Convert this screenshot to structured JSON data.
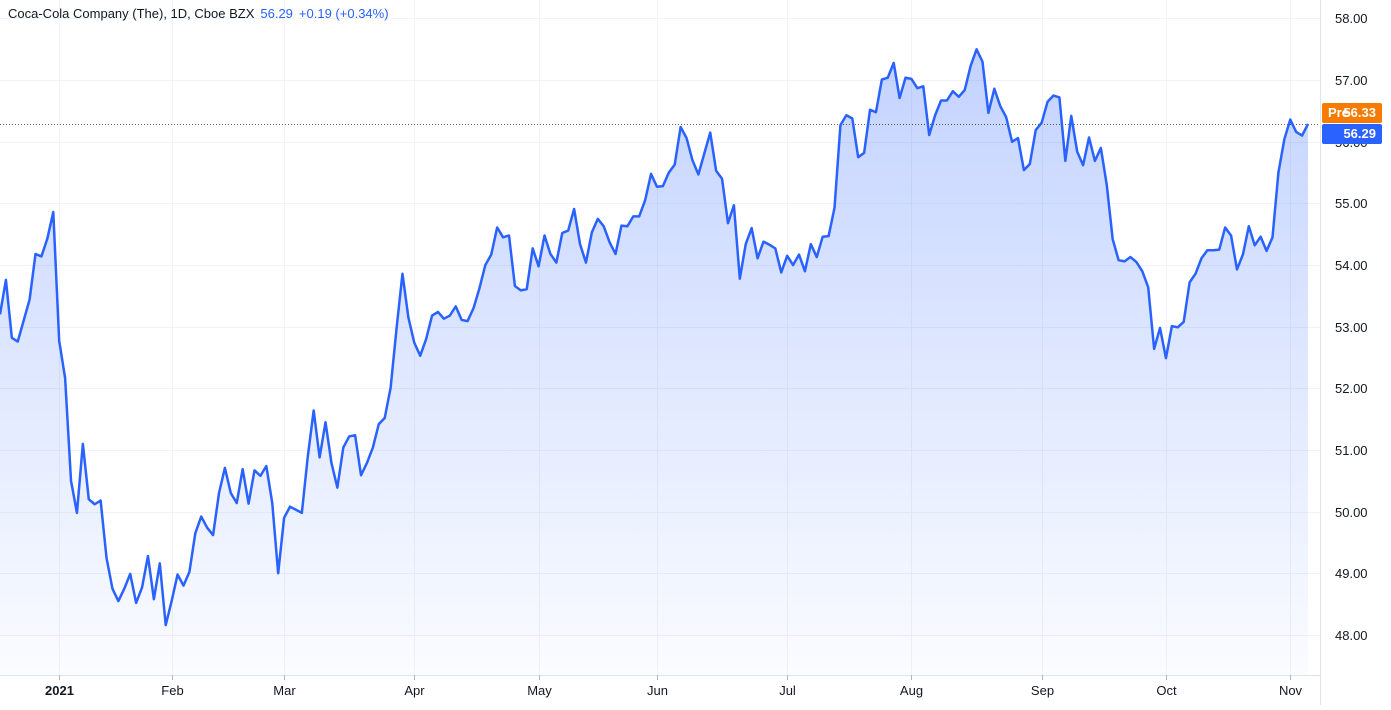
{
  "legend": {
    "title": "Coca-Cola Company (The), 1D, Cboe BZX",
    "last": "56.29",
    "change": "+0.19 (+0.34%)"
  },
  "tags": {
    "pre_label": "Pre",
    "pre_value": "56.33",
    "last_value": "56.29"
  },
  "colors": {
    "line": "#2962ff",
    "pre": "#f57c00",
    "grid": "#f0f3fa"
  },
  "chart_data": {
    "type": "area",
    "ylim": [
      47.35,
      58.3
    ],
    "y_ticks": [
      "48.00",
      "49.00",
      "50.00",
      "51.00",
      "52.00",
      "53.00",
      "54.00",
      "55.00",
      "56.00",
      "57.00",
      "58.00"
    ],
    "x_tick_labels": [
      {
        "label": "2021",
        "bold": true
      },
      {
        "label": "Feb",
        "bold": false
      },
      {
        "label": "Mar",
        "bold": false
      },
      {
        "label": "Apr",
        "bold": false
      },
      {
        "label": "May",
        "bold": false
      },
      {
        "label": "Jun",
        "bold": false
      },
      {
        "label": "Jul",
        "bold": false
      },
      {
        "label": "Aug",
        "bold": false
      },
      {
        "label": "Sep",
        "bold": false
      },
      {
        "label": "Oct",
        "bold": false
      },
      {
        "label": "Nov",
        "bold": false
      }
    ],
    "x_tick_index": [
      10,
      29,
      48,
      70,
      91,
      111,
      133,
      154,
      176,
      197,
      218
    ],
    "n_points": 222,
    "values": [
      53.2,
      53.76,
      52.82,
      52.76,
      53.1,
      53.44,
      54.18,
      54.14,
      54.43,
      54.86,
      52.77,
      52.17,
      50.5,
      49.98,
      51.1,
      50.2,
      50.12,
      50.18,
      49.25,
      48.75,
      48.55,
      48.75,
      48.99,
      48.52,
      48.77,
      49.28,
      48.58,
      49.16,
      48.16,
      48.55,
      48.98,
      48.8,
      49.02,
      49.65,
      49.92,
      49.74,
      49.62,
      50.3,
      50.71,
      50.3,
      50.14,
      50.69,
      50.13,
      50.67,
      50.58,
      50.74,
      50.14,
      49.0,
      49.9,
      50.08,
      50.03,
      49.98,
      50.89,
      51.64,
      50.88,
      51.45,
      50.79,
      50.39,
      51.04,
      51.22,
      51.24,
      50.59,
      50.79,
      51.04,
      51.42,
      51.52,
      52.01,
      52.97,
      53.86,
      53.15,
      52.74,
      52.53,
      52.8,
      53.18,
      53.24,
      53.13,
      53.18,
      53.33,
      53.11,
      53.09,
      53.3,
      53.62,
      54.0,
      54.17,
      54.61,
      54.45,
      54.48,
      53.66,
      53.59,
      53.61,
      54.27,
      53.98,
      54.48,
      54.18,
      54.04,
      54.52,
      54.56,
      54.91,
      54.34,
      54.04,
      54.53,
      54.75,
      54.63,
      54.37,
      54.18,
      54.64,
      54.63,
      54.79,
      54.79,
      55.05,
      55.48,
      55.27,
      55.28,
      55.5,
      55.63,
      56.24,
      56.06,
      55.7,
      55.47,
      55.81,
      56.15,
      55.53,
      55.4,
      54.68,
      54.97,
      53.78,
      54.34,
      54.6,
      54.11,
      54.38,
      54.33,
      54.27,
      53.88,
      54.15,
      54.0,
      54.17,
      53.9,
      54.34,
      54.13,
      54.46,
      54.47,
      54.93,
      56.27,
      56.43,
      56.38,
      55.75,
      55.82,
      56.52,
      56.48,
      57.01,
      57.04,
      57.28,
      56.71,
      57.04,
      57.02,
      56.87,
      56.9,
      56.11,
      56.43,
      56.67,
      56.67,
      56.82,
      56.73,
      56.84,
      57.23,
      57.5,
      57.3,
      56.47,
      56.86,
      56.58,
      56.4,
      56.0,
      56.06,
      55.54,
      55.64,
      56.19,
      56.31,
      56.65,
      56.75,
      56.72,
      55.69,
      56.42,
      55.84,
      55.62,
      56.07,
      55.69,
      55.9,
      55.3,
      54.42,
      54.08,
      54.06,
      54.13,
      54.05,
      53.9,
      53.64,
      52.64,
      52.98,
      52.49,
      53.01,
      52.99,
      53.08,
      53.72,
      53.86,
      54.11,
      54.24,
      54.24,
      54.25,
      54.61,
      54.48,
      53.93,
      54.17,
      54.63,
      54.32,
      54.46,
      54.23,
      54.45,
      55.5,
      56.04,
      56.36,
      56.16,
      56.1,
      56.29
    ]
  }
}
